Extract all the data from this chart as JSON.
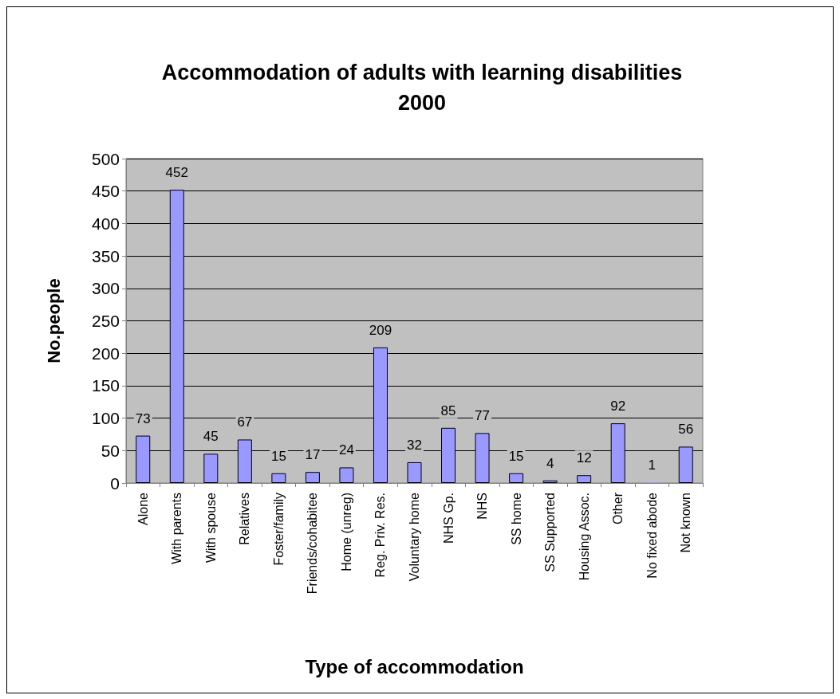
{
  "chart_data": {
    "type": "bar",
    "title": "Accommodation of adults with learning disabilities\n2000",
    "xlabel": "Type of accommodation",
    "ylabel": "No.people",
    "categories": [
      "Alone",
      "With parents",
      "With spouse",
      "Relatives",
      "Foster/family",
      "Friends/cohabitee",
      "Home (unreg)",
      "Reg. Priv. Res.",
      "Voluntary home",
      "NHS Gp.",
      "NHS",
      "SS home",
      "SS Supported",
      "Housing Assoc.",
      "Other",
      "No fixed abode",
      "Not known"
    ],
    "values": [
      73,
      452,
      45,
      67,
      15,
      17,
      24,
      209,
      32,
      85,
      77,
      15,
      4,
      12,
      92,
      1,
      56
    ],
    "color": "#9999ff",
    "ylim": [
      0,
      500
    ],
    "yticks": [
      0,
      50,
      100,
      150,
      200,
      250,
      300,
      350,
      400,
      450,
      500
    ],
    "grid": "y",
    "data_labels": true
  }
}
